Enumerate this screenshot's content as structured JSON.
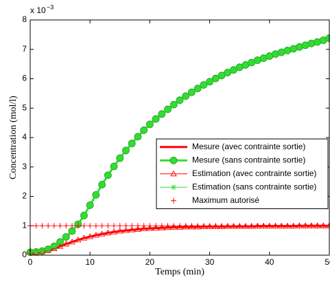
{
  "chart_data": {
    "type": "line",
    "xlabel": "Temps (min)",
    "ylabel": "Concentration (mol/l)",
    "y_multiplier": {
      "base": "x 10",
      "exponent": "−3"
    },
    "x": [
      0,
      1,
      2,
      3,
      4,
      5,
      6,
      7,
      8,
      9,
      10,
      11,
      12,
      13,
      14,
      15,
      16,
      17,
      18,
      19,
      20,
      21,
      22,
      23,
      24,
      25,
      26,
      27,
      28,
      29,
      30,
      31,
      32,
      33,
      34,
      35,
      36,
      37,
      38,
      39,
      40,
      41,
      42,
      43,
      44,
      45,
      46,
      47,
      48,
      49,
      50
    ],
    "series": [
      {
        "name": "Mesure (avec contrainte sortie)",
        "color": "#ff0000",
        "line_width": 3,
        "marker": "none",
        "values": [
          0.1,
          0.1,
          0.12,
          0.16,
          0.22,
          0.3,
          0.38,
          0.45,
          0.52,
          0.58,
          0.63,
          0.68,
          0.72,
          0.76,
          0.79,
          0.82,
          0.84,
          0.86,
          0.88,
          0.9,
          0.91,
          0.92,
          0.93,
          0.94,
          0.95,
          0.95,
          0.96,
          0.96,
          0.96,
          0.97,
          0.97,
          0.97,
          0.97,
          0.98,
          0.98,
          0.98,
          0.98,
          0.98,
          0.99,
          0.99,
          0.99,
          0.99,
          0.99,
          0.99,
          0.99,
          1.0,
          1.0,
          1.0,
          1.0,
          1.0,
          1.0
        ]
      },
      {
        "name": "Mesure (sans contrainte sortie)",
        "color": "#33dd33",
        "line_width": 3,
        "marker": "circle",
        "values": [
          0.1,
          0.11,
          0.14,
          0.2,
          0.3,
          0.45,
          0.62,
          0.82,
          1.05,
          1.35,
          1.7,
          2.05,
          2.4,
          2.72,
          3.02,
          3.3,
          3.56,
          3.8,
          4.03,
          4.25,
          4.45,
          4.63,
          4.8,
          4.96,
          5.12,
          5.27,
          5.41,
          5.54,
          5.67,
          5.79,
          5.9,
          6.01,
          6.11,
          6.21,
          6.3,
          6.39,
          6.47,
          6.55,
          6.63,
          6.7,
          6.77,
          6.84,
          6.9,
          6.96,
          7.02,
          7.08,
          7.14,
          7.2,
          7.25,
          7.31,
          7.38
        ]
      },
      {
        "name": "Estimation (avec contrainte sortie)",
        "color": "#ff0000",
        "line_width": 1,
        "marker": "triangle",
        "values": [
          0.1,
          0.1,
          0.12,
          0.16,
          0.22,
          0.3,
          0.38,
          0.45,
          0.52,
          0.58,
          0.63,
          0.68,
          0.72,
          0.76,
          0.79,
          0.82,
          0.84,
          0.86,
          0.88,
          0.9,
          0.91,
          0.92,
          0.93,
          0.94,
          0.95,
          0.95,
          0.96,
          0.96,
          0.96,
          0.97,
          0.97,
          0.97,
          0.97,
          0.98,
          0.98,
          0.98,
          0.98,
          0.98,
          0.99,
          0.99,
          0.99,
          0.99,
          0.99,
          0.99,
          0.99,
          1.0,
          1.0,
          1.0,
          1.0,
          1.0,
          1.0
        ]
      },
      {
        "name": "Estimation (sans contrainte sortie)",
        "color": "#33dd33",
        "line_width": 1,
        "marker": "asterisk",
        "values": [
          0.1,
          0.11,
          0.14,
          0.2,
          0.3,
          0.45,
          0.62,
          0.82,
          1.05,
          1.35,
          1.7,
          2.05,
          2.4,
          2.72,
          3.02,
          3.3,
          3.56,
          3.8,
          4.03,
          4.25,
          4.45,
          4.63,
          4.8,
          4.96,
          5.12,
          5.27,
          5.41,
          5.54,
          5.67,
          5.79,
          5.9,
          6.01,
          6.11,
          6.21,
          6.3,
          6.39,
          6.47,
          6.55,
          6.63,
          6.7,
          6.77,
          6.84,
          6.9,
          6.96,
          7.02,
          7.08,
          7.14,
          7.2,
          7.25,
          7.31,
          7.38
        ]
      },
      {
        "name": "Maximum autorisé",
        "color": "#ff0000",
        "line_width": 0,
        "marker": "plus",
        "values": [
          1,
          1,
          1,
          1,
          1,
          1,
          1,
          1,
          1,
          1,
          1,
          1,
          1,
          1,
          1,
          1,
          1,
          1,
          1,
          1,
          1,
          1,
          1,
          1,
          1,
          1,
          1,
          1,
          1,
          1,
          1,
          1,
          1,
          1,
          1,
          1,
          1,
          1,
          1,
          1,
          1,
          1,
          1,
          1,
          1,
          1,
          1,
          1,
          1,
          1,
          1
        ]
      }
    ],
    "xlim": [
      0,
      50
    ],
    "ylim": [
      0,
      8
    ],
    "xticks": [
      0,
      10,
      20,
      30,
      40,
      50
    ],
    "yticks": [
      0,
      1,
      2,
      3,
      4,
      5,
      6,
      7,
      8
    ],
    "grid": false,
    "legend_position": "right"
  }
}
